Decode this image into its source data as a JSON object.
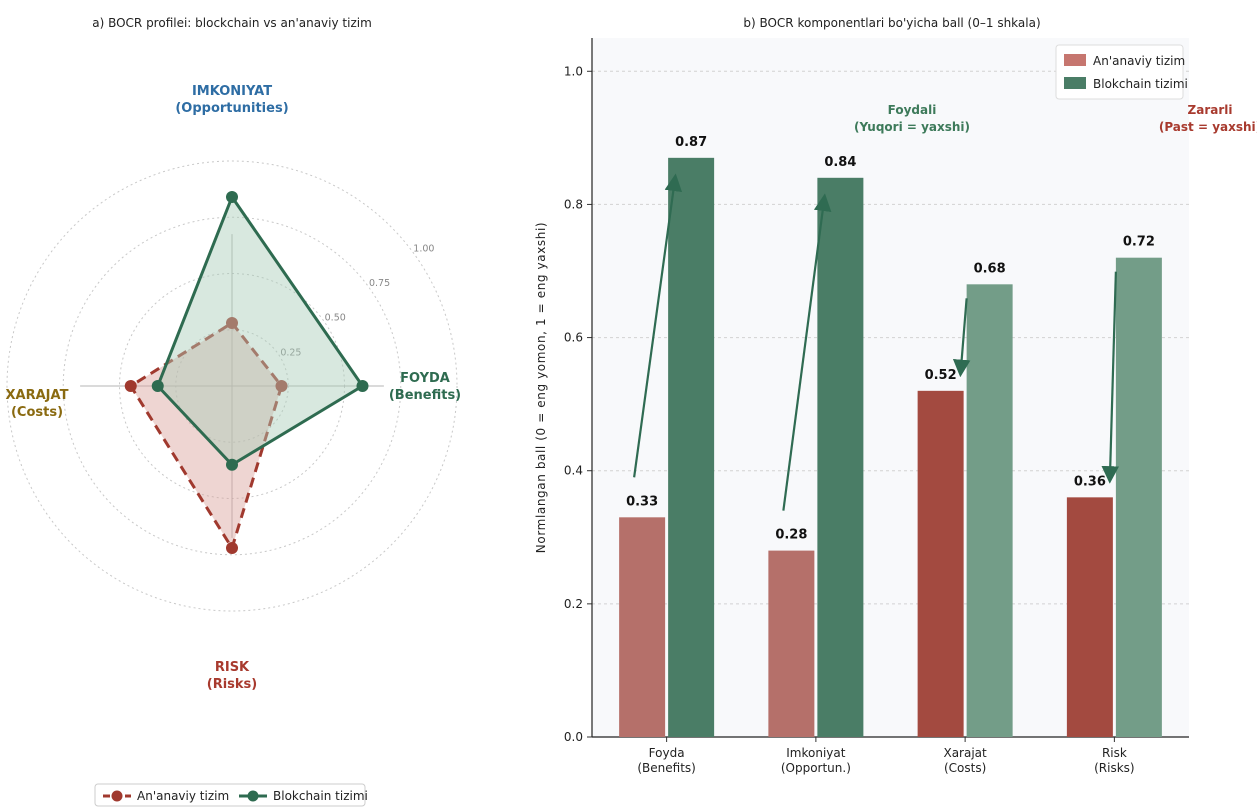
{
  "chart_data": [
    {
      "type": "radar",
      "title": "a) BOCR profilei: blockchain vs an'anaviy tizim",
      "axes": [
        {
          "name": "IMKONIYAT",
          "sub": "(Opportunities)",
          "color": "#2e6da4"
        },
        {
          "name": "FOYDA",
          "sub": "(Benefits)",
          "color": "#2e6b50"
        },
        {
          "name": "RISK",
          "sub": "(Risks)",
          "color": "#a83a2e"
        },
        {
          "name": "XARAJAT",
          "sub": "(Costs)",
          "color": "#8a6a10"
        }
      ],
      "rticks": [
        "0.25",
        "0.50",
        "0.75",
        "1.00"
      ],
      "rlim": [
        0,
        1
      ],
      "series": [
        {
          "name": "An'anaviy tizim",
          "values": [
            0.28,
            0.22,
            0.72,
            0.45
          ],
          "color": "#a0392e",
          "fill": "#d9a29b",
          "style": "dashed"
        },
        {
          "name": "Blokchain tizimi",
          "values": [
            0.84,
            0.58,
            0.35,
            0.33
          ],
          "color": "#2e6b50",
          "fill": "#a9cbb8",
          "style": "solid"
        }
      ],
      "legend": "bottom"
    },
    {
      "type": "bar",
      "title": "b) BOCR komponentlari bo'yicha ball (0–1 shkala)",
      "categories": [
        "Foyda\n(Benefits)",
        "Imkoniyat\n(Opportun.)",
        "Xarajat\n(Costs)",
        "Risk\n(Risks)"
      ],
      "series": [
        {
          "name": "An'anaviy tizim",
          "values": [
            0.33,
            0.28,
            0.52,
            0.36
          ],
          "colors": [
            "#b5706a",
            "#b5706a",
            "#a34a40",
            "#a34a40"
          ]
        },
        {
          "name": "Blokchain tizimi",
          "values": [
            0.87,
            0.84,
            0.68,
            0.72
          ],
          "colors": [
            "#4a7d66",
            "#4a7d66",
            "#739d88",
            "#739d88"
          ]
        }
      ],
      "ylabel": "Normlangan ball (0 = eng yomon, 1 = eng yaxshi)",
      "ylim": [
        0,
        1.05
      ],
      "yticks": [
        "0.0",
        "0.2",
        "0.4",
        "0.6",
        "0.8",
        "1.0"
      ],
      "grid": true,
      "legend": "top-right",
      "legend_colors": [
        "#c6766f",
        "#4a7d66"
      ],
      "annotations": [
        {
          "text": "Foydali",
          "text2": "(Yuqori = yaxshi)",
          "color": "#3d7a5a"
        },
        {
          "text": "Zararli",
          "text2": "(Past = yaxshi)",
          "color": "#a83a2e"
        }
      ]
    }
  ]
}
